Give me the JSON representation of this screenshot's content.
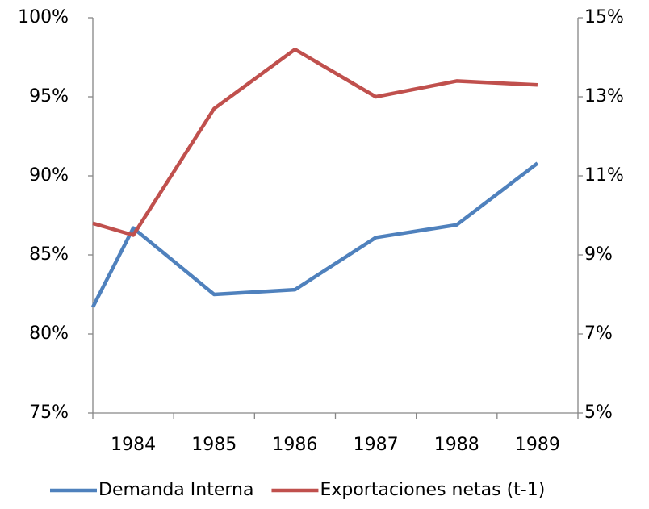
{
  "chart_data": {
    "type": "line",
    "categories": [
      null,
      "1984",
      "1985",
      "1986",
      "1987",
      "1988",
      "1989"
    ],
    "series": [
      {
        "name": "Demanda Interna",
        "color": "#4f81bd",
        "values": [
          81.7,
          86.7,
          82.5,
          82.8,
          86.1,
          86.9,
          90.8
        ]
      },
      {
        "name": "Exportaciones netas (t-1)",
        "color": "#c0504d",
        "axis": "y2",
        "values": [
          9.8,
          9.5,
          12.7,
          14.2,
          13.0,
          13.4,
          13.3
        ]
      }
    ],
    "ylim": [
      75,
      100
    ],
    "yticks": [
      {
        "value": 75,
        "label": "75%"
      },
      {
        "value": 80,
        "label": "80%"
      },
      {
        "value": 85,
        "label": "85%"
      },
      {
        "value": 90,
        "label": "90%"
      },
      {
        "value": 95,
        "label": "95%"
      },
      {
        "value": 100,
        "label": "100%"
      }
    ],
    "y2lim": [
      5,
      15
    ],
    "y2ticks": [
      {
        "value": 5,
        "label": "5%"
      },
      {
        "value": 7,
        "label": "7%"
      },
      {
        "value": 9,
        "label": "9%"
      },
      {
        "value": 11,
        "label": "11%"
      },
      {
        "value": 13,
        "label": "13%"
      },
      {
        "value": 15,
        "label": "15%"
      }
    ],
    "grid": false,
    "legend": "bottom"
  }
}
